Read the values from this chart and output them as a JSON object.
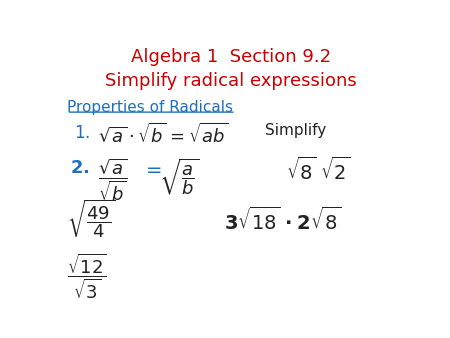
{
  "title_line1": "Algebra 1  Section 9.2",
  "title_line2": "Simplify radical expressions",
  "title_color": "#CC0000",
  "title_fontsize": 13,
  "bg_color": "#ffffff",
  "blue_color": "#1F6FBF",
  "black_color": "#222222"
}
